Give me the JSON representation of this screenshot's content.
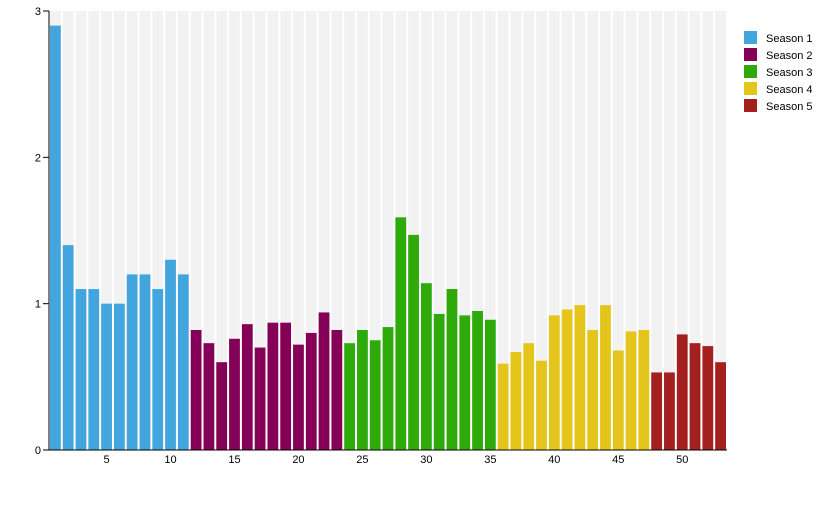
{
  "chart_data": {
    "type": "bar",
    "xlabel": "",
    "ylabel": "",
    "title": "",
    "ylim": [
      0,
      3
    ],
    "yticks": [
      0,
      1,
      2,
      3
    ],
    "xticks": [
      5,
      10,
      15,
      20,
      25,
      30,
      35,
      40,
      45,
      50
    ],
    "legend_position": "right",
    "grid": false,
    "series": [
      {
        "name": "Season 1",
        "color": "#42a5de",
        "x": [
          1,
          2,
          3,
          4,
          5,
          6,
          7,
          8,
          9,
          10,
          11
        ],
        "values": [
          2.9,
          1.4,
          1.1,
          1.1,
          1.0,
          1.0,
          1.2,
          1.2,
          1.1,
          1.3,
          1.2
        ]
      },
      {
        "name": "Season 2",
        "color": "#850057",
        "x": [
          12,
          13,
          14,
          15,
          16,
          17,
          18,
          19,
          20,
          21,
          22,
          23
        ],
        "values": [
          0.82,
          0.73,
          0.6,
          0.76,
          0.86,
          0.7,
          0.87,
          0.87,
          0.72,
          0.8,
          0.94,
          0.82
        ]
      },
      {
        "name": "Season 3",
        "color": "#2eaa0a",
        "x": [
          24,
          25,
          26,
          27,
          28,
          29,
          30,
          31,
          32,
          33,
          34,
          35
        ],
        "values": [
          0.73,
          0.82,
          0.75,
          0.84,
          1.59,
          1.47,
          1.14,
          0.93,
          1.1,
          0.92,
          0.95,
          0.89
        ]
      },
      {
        "name": "Season 4",
        "color": "#e3c51c",
        "x": [
          36,
          37,
          38,
          39,
          40,
          41,
          42,
          43,
          44,
          45,
          46,
          47
        ],
        "values": [
          0.59,
          0.67,
          0.73,
          0.61,
          0.92,
          0.96,
          0.99,
          0.82,
          0.99,
          0.68,
          0.81,
          0.82
        ]
      },
      {
        "name": "Season 5",
        "color": "#a3201e",
        "x": [
          48,
          49,
          50,
          51,
          52,
          53
        ],
        "values": [
          0.53,
          0.53,
          0.79,
          0.73,
          0.71,
          0.6
        ]
      }
    ]
  }
}
